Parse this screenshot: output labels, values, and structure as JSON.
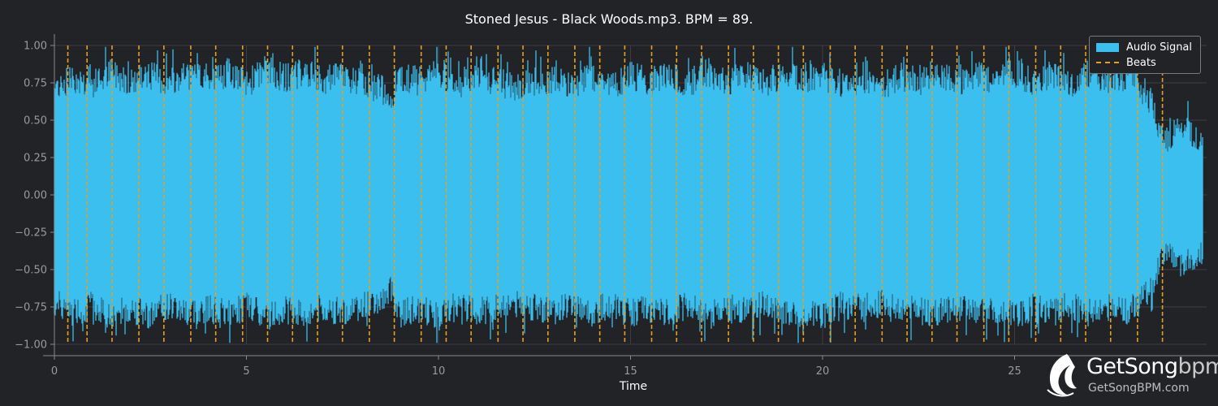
{
  "chart_data": {
    "type": "line",
    "title": "Stoned Jesus - Black Woods.mp3. BPM =  89.",
    "xlabel": "Time",
    "ylabel": "",
    "xlim": [
      0,
      30
    ],
    "ylim": [
      -1.0,
      1.0
    ],
    "x_ticks": [
      0,
      5,
      10,
      15,
      20,
      25
    ],
    "y_ticks": [
      1.0,
      0.75,
      0.5,
      0.25,
      0.0,
      -0.25,
      -0.5,
      -0.75,
      -1.0
    ],
    "x_tick_labels": [
      "0",
      "5",
      "10",
      "15",
      "20",
      "25"
    ],
    "y_tick_labels": [
      "1.00",
      "0.75",
      "0.50",
      "0.25",
      "0.00",
      "−0.25",
      "−0.50",
      "−0.75",
      "−1.00"
    ],
    "grid": true,
    "legend_position": "top-right",
    "series": [
      {
        "name": "Audio Signal",
        "color": "#3bbfef",
        "envelope": {
          "x": [
            0.0,
            0.5,
            1.0,
            1.5,
            2.0,
            2.5,
            3.0,
            3.5,
            4.0,
            4.5,
            5.0,
            5.5,
            6.0,
            6.5,
            7.0,
            7.5,
            8.0,
            8.5,
            8.75,
            9.0,
            9.5,
            10.0,
            10.5,
            11.0,
            11.5,
            12.0,
            12.5,
            13.0,
            13.5,
            14.0,
            14.5,
            15.0,
            15.5,
            16.0,
            16.5,
            17.0,
            17.5,
            18.0,
            18.5,
            19.0,
            19.5,
            20.0,
            20.5,
            21.0,
            21.5,
            22.0,
            22.5,
            23.0,
            23.5,
            24.0,
            24.5,
            25.0,
            25.5,
            26.0,
            26.5,
            27.0,
            27.5,
            28.0,
            28.5,
            28.8,
            29.0,
            29.3,
            29.6,
            29.9
          ],
          "upper": [
            0.72,
            0.78,
            0.74,
            0.82,
            0.76,
            0.8,
            0.75,
            0.8,
            0.76,
            0.82,
            0.74,
            0.84,
            0.78,
            0.82,
            0.76,
            0.8,
            0.74,
            0.72,
            0.62,
            0.8,
            0.76,
            0.82,
            0.74,
            0.8,
            0.76,
            0.72,
            0.76,
            0.78,
            0.74,
            0.8,
            0.72,
            0.8,
            0.76,
            0.82,
            0.74,
            0.82,
            0.76,
            0.8,
            0.74,
            0.82,
            0.78,
            0.8,
            0.74,
            0.76,
            0.72,
            0.8,
            0.76,
            0.82,
            0.74,
            0.8,
            0.76,
            0.82,
            0.76,
            0.8,
            0.74,
            0.82,
            0.76,
            0.8,
            0.65,
            0.42,
            0.35,
            0.48,
            0.4,
            0.35
          ],
          "lower": [
            -0.72,
            -0.78,
            -0.74,
            -0.8,
            -0.76,
            -0.8,
            -0.74,
            -0.78,
            -0.76,
            -0.8,
            -0.74,
            -0.82,
            -0.76,
            -0.8,
            -0.76,
            -0.78,
            -0.74,
            -0.72,
            -0.62,
            -0.8,
            -0.76,
            -0.82,
            -0.74,
            -0.78,
            -0.76,
            -0.72,
            -0.76,
            -0.78,
            -0.74,
            -0.8,
            -0.72,
            -0.8,
            -0.76,
            -0.8,
            -0.74,
            -0.8,
            -0.76,
            -0.78,
            -0.74,
            -0.8,
            -0.78,
            -0.8,
            -0.74,
            -0.76,
            -0.72,
            -0.78,
            -0.76,
            -0.8,
            -0.74,
            -0.8,
            -0.76,
            -0.8,
            -0.76,
            -0.78,
            -0.74,
            -0.8,
            -0.76,
            -0.78,
            -0.65,
            -0.45,
            -0.38,
            -0.5,
            -0.42,
            -0.38
          ]
        }
      },
      {
        "name": "Beats",
        "color": "#e69f22",
        "style": "dashed",
        "x": [
          0.35,
          0.85,
          1.5,
          2.2,
          2.85,
          3.55,
          4.2,
          4.9,
          5.55,
          6.2,
          6.85,
          7.5,
          8.2,
          8.85,
          9.55,
          10.2,
          10.85,
          11.55,
          12.2,
          12.85,
          13.55,
          14.2,
          14.85,
          15.55,
          16.2,
          16.85,
          17.55,
          18.2,
          18.85,
          19.5,
          20.2,
          20.85,
          21.55,
          22.2,
          22.85,
          23.5,
          24.2,
          24.85,
          25.55,
          26.2,
          26.85,
          27.5,
          28.2,
          28.85
        ]
      }
    ]
  },
  "logo": {
    "name_main": "GetSong",
    "name_suffix": "bpm",
    "url": "GetSongBPM.com"
  }
}
